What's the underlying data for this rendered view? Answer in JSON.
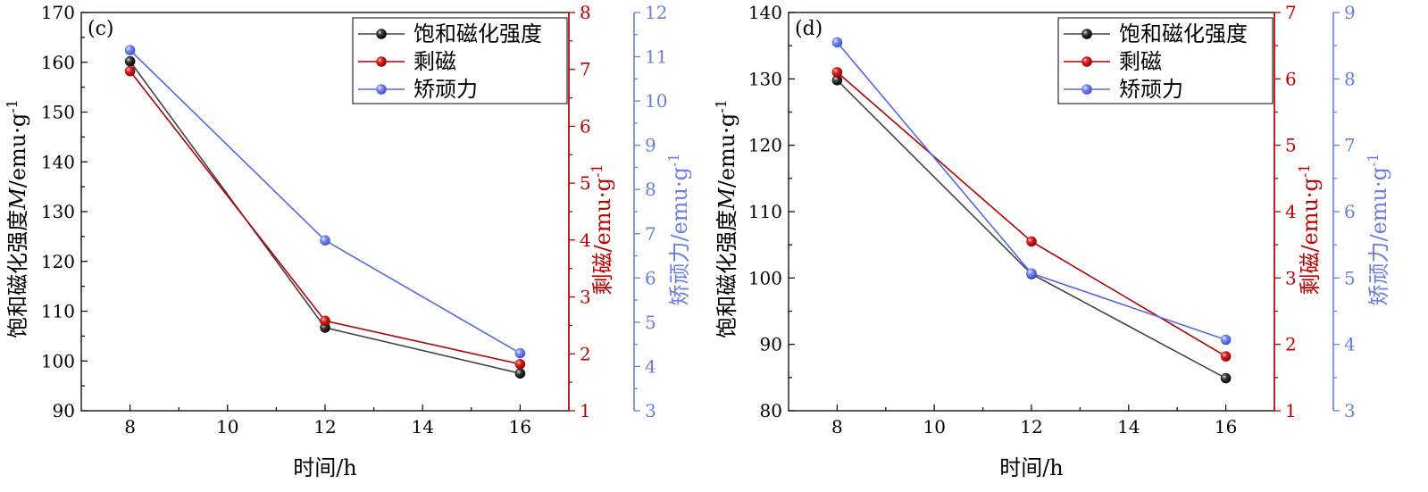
{
  "chart_data": [
    {
      "type": "line",
      "panel_label": "(c)",
      "x": [
        8,
        12,
        16
      ],
      "xlabel": "时间/h",
      "xlim": [
        7,
        17
      ],
      "xticks": [
        8,
        10,
        12,
        14,
        16
      ],
      "axes": {
        "y1": {
          "ylabel": "饱和磁化强度M/emu·g-1",
          "label_base": "饱和磁化强度",
          "label_italic": "M",
          "label_unit": "/emu·g",
          "label_sup": "-1",
          "ylim": [
            90,
            170
          ],
          "ticks": [
            90,
            100,
            110,
            120,
            130,
            140,
            150,
            160,
            170
          ],
          "color": "#000000"
        },
        "y2": {
          "ylabel": "剩磁/emu·g-1",
          "label_base": "剩磁",
          "label_unit": "/emu·g",
          "label_sup": "-1",
          "ylim": [
            1,
            8
          ],
          "ticks": [
            1,
            2,
            3,
            4,
            5,
            6,
            7,
            8
          ],
          "color": "#c00000"
        },
        "y3": {
          "ylabel": "矫顽力/emu·g-1",
          "label_base": "矫顽力",
          "label_unit": "/emu·g",
          "label_sup": "-1",
          "ylim": [
            3,
            12
          ],
          "ticks": [
            3,
            4,
            5,
            6,
            7,
            8,
            9,
            10,
            11,
            12
          ],
          "color": "#6a7de0"
        }
      },
      "series": [
        {
          "name": "饱和磁化强度",
          "axis": "y1",
          "values": [
            160.2,
            106.7,
            97.5
          ],
          "line_color": "#444444",
          "marker_color": "#000000"
        },
        {
          "name": "剩磁",
          "axis": "y2",
          "values": [
            6.97,
            2.58,
            1.82
          ],
          "line_color": "#b00000",
          "marker_color": "#d01010"
        },
        {
          "name": "矫顽力",
          "axis": "y3",
          "values": [
            11.15,
            6.85,
            4.3
          ],
          "line_color": "#5568e6",
          "marker_color": "#6a7de0"
        }
      ],
      "legend": {
        "position": "top-right"
      }
    },
    {
      "type": "line",
      "panel_label": "(d)",
      "x": [
        8,
        12,
        16
      ],
      "xlabel": "时间/h",
      "xlim": [
        7,
        17
      ],
      "xticks": [
        8,
        10,
        12,
        14,
        16
      ],
      "axes": {
        "y1": {
          "ylabel": "饱和磁化强度M/emu·g-1",
          "label_base": "饱和磁化强度",
          "label_italic": "M",
          "label_unit": "/emu·g",
          "label_sup": "-1",
          "ylim": [
            80,
            140
          ],
          "ticks": [
            80,
            90,
            100,
            110,
            120,
            130,
            140
          ],
          "color": "#000000"
        },
        "y2": {
          "ylabel": "剩磁/emu·g-1",
          "label_base": "剩磁",
          "label_unit": "/emu·g",
          "label_sup": "-1",
          "ylim": [
            1,
            7
          ],
          "ticks": [
            1,
            2,
            3,
            4,
            5,
            6,
            7
          ],
          "color": "#c00000"
        },
        "y3": {
          "ylabel": "矫顽力/emu·g-1",
          "label_base": "矫顽力",
          "label_unit": "/emu·g",
          "label_sup": "-1",
          "ylim": [
            3,
            9
          ],
          "ticks": [
            3,
            4,
            5,
            6,
            7,
            8,
            9
          ],
          "color": "#6a7de0"
        }
      },
      "series": [
        {
          "name": "饱和磁化强度",
          "axis": "y1",
          "values": [
            129.8,
            100.6,
            84.9
          ],
          "line_color": "#444444",
          "marker_color": "#000000"
        },
        {
          "name": "剩磁",
          "axis": "y2",
          "values": [
            6.1,
            3.55,
            1.82
          ],
          "line_color": "#b00000",
          "marker_color": "#d01010"
        },
        {
          "name": "矫顽力",
          "axis": "y3",
          "values": [
            8.55,
            5.07,
            4.07
          ],
          "line_color": "#5568e6",
          "marker_color": "#6a7de0"
        }
      ],
      "legend": {
        "position": "top-right"
      }
    }
  ]
}
